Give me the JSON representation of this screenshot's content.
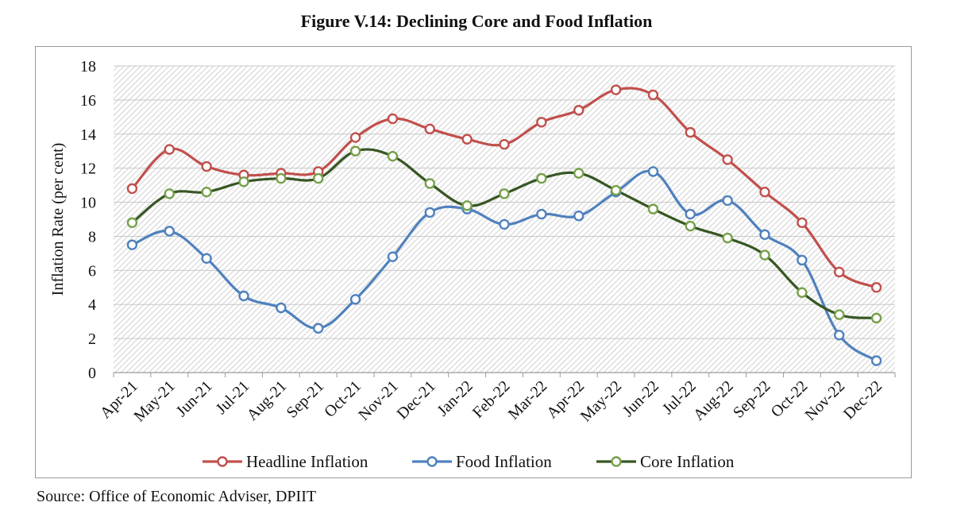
{
  "figure_title": "Figure V.14: Declining Core and Food Inflation",
  "source": "Source: Office of Economic Adviser, DPIIT",
  "chart_data": {
    "type": "line",
    "title": "Figure V.14: Declining Core and Food Inflation",
    "xlabel": "",
    "ylabel": "Inflation Rate (per cent)",
    "ylim": [
      0,
      18
    ],
    "yticks": [
      0,
      2,
      4,
      6,
      8,
      10,
      12,
      14,
      16,
      18
    ],
    "grid": true,
    "legend_position": "bottom",
    "categories": [
      "Apr-21",
      "May-21",
      "Jun-21",
      "Jul-21",
      "Aug-21",
      "Sep-21",
      "Oct-21",
      "Nov-21",
      "Dec-21",
      "Jan-22",
      "Feb-22",
      "Mar-22",
      "Apr-22",
      "May-22",
      "Jun-22",
      "Jul-22",
      "Aug-22",
      "Sep-22",
      "Oct-22",
      "Nov-22",
      "Dec-22"
    ],
    "series": [
      {
        "name": "Headline Inflation",
        "color": "#c0504d",
        "marker_fill": "#ffffff",
        "values": [
          10.8,
          13.1,
          12.1,
          11.6,
          11.7,
          11.8,
          13.8,
          14.9,
          14.3,
          13.7,
          13.4,
          14.7,
          15.4,
          16.6,
          16.3,
          14.1,
          12.5,
          10.6,
          8.8,
          5.9,
          5.0
        ]
      },
      {
        "name": "Food Inflation",
        "color": "#4f81bd",
        "marker_fill": "#ffffff",
        "values": [
          7.5,
          8.3,
          6.7,
          4.5,
          3.8,
          2.6,
          4.3,
          6.8,
          9.4,
          9.6,
          8.7,
          9.3,
          9.2,
          10.6,
          11.8,
          9.3,
          10.1,
          8.1,
          6.6,
          2.2,
          0.7
        ]
      },
      {
        "name": "Core Inflation",
        "color": "#375623",
        "marker_fill": "#ffffff",
        "marker_stroke": "#76a04b",
        "values": [
          8.8,
          10.5,
          10.6,
          11.2,
          11.4,
          11.4,
          13.0,
          12.7,
          11.1,
          9.8,
          10.5,
          11.4,
          11.7,
          10.7,
          9.6,
          8.6,
          7.9,
          6.9,
          4.7,
          3.4,
          3.2
        ]
      }
    ]
  }
}
